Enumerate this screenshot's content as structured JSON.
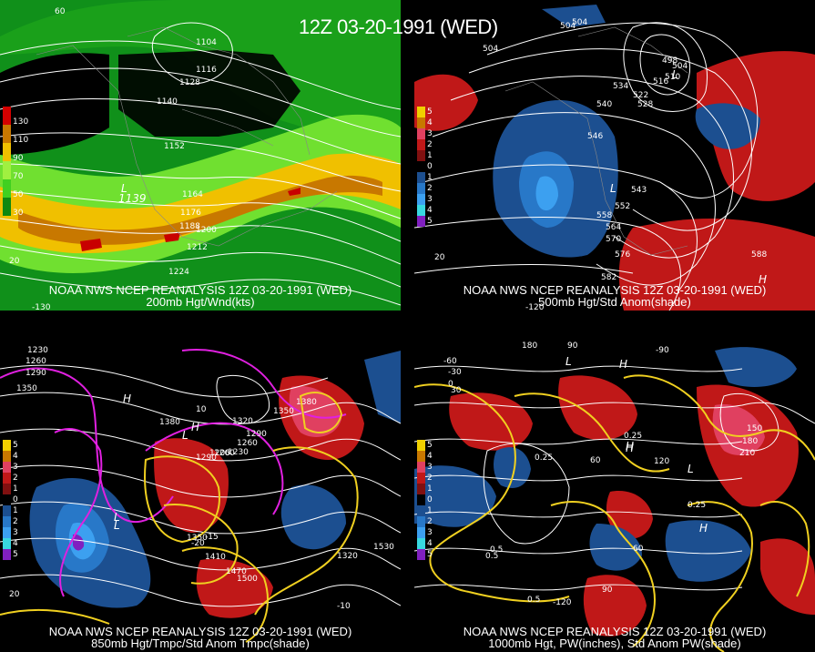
{
  "header": {
    "title": "12Z 03-20-1991 (WED)"
  },
  "panels": [
    {
      "id": "p200",
      "caption1": "NOAA NWS NCEP REANALYSIS 12Z 03-20-1991 (WED)",
      "caption2": "200mb Hgt/Wnd(kts)",
      "legend_labels": [
        "130",
        "110",
        "90",
        "70",
        "50",
        "30"
      ],
      "legend_colors": [
        "#d40000",
        "#c87800",
        "#f0c000",
        "#a0f040",
        "#40d020",
        "#108810"
      ],
      "contour_labels": [
        "1104",
        "1116",
        "1128",
        "1140",
        "1152",
        "1164",
        "1176",
        "1188",
        "1200",
        "1212",
        "1224",
        "60",
        "20",
        "-130"
      ],
      "center_marks": [
        "L",
        "1139"
      ]
    },
    {
      "id": "p500",
      "caption1": "NOAA NWS NCEP REANALYSIS 12Z 03-20-1991 (WED)",
      "caption2": "500mb Hgt/Std Anom(shade)",
      "legend_labels": [
        "5",
        "4",
        "3",
        "2",
        "1",
        "0",
        "1",
        "2",
        "3",
        "4",
        "5"
      ],
      "legend_colors": [
        "#f0d000",
        "#c87800",
        "#e04060",
        "#c01818",
        "#801010",
        "#000000",
        "#1c4f90",
        "#2878c8",
        "#3ca0f0",
        "#38d8e0",
        "#8020c0"
      ],
      "contour_labels": [
        "504",
        "504",
        "504",
        "510",
        "516",
        "522",
        "528",
        "534",
        "540",
        "546",
        "552",
        "558",
        "564",
        "570",
        "576",
        "582",
        "588",
        "498",
        "504",
        "543",
        "20",
        "-120"
      ],
      "center_marks": [
        "L",
        "H",
        "L"
      ]
    },
    {
      "id": "p850",
      "caption1": "NOAA NWS NCEP REANALYSIS 12Z 03-20-1991 (WED)",
      "caption2": "850mb Hgt/Tmpc/Std Anom Tmpc(shade)",
      "legend_labels": [
        "5",
        "4",
        "3",
        "2",
        "1",
        "0",
        "1",
        "2",
        "3",
        "4",
        "5"
      ],
      "legend_colors": [
        "#f0d000",
        "#c87800",
        "#e04060",
        "#c01818",
        "#801010",
        "#000000",
        "#1c4f90",
        "#2878c8",
        "#3ca0f0",
        "#38d8e0",
        "#8020c0"
      ],
      "contour_labels": [
        "1230",
        "1260",
        "1290",
        "1350",
        "1380",
        "1380",
        "1350",
        "1320",
        "1290",
        "1260",
        "1230",
        "1200",
        "1260",
        "1290",
        "1320",
        "1350",
        "1410",
        "1470",
        "1500",
        "1530",
        "10",
        "-20",
        "-15",
        "-10",
        "20"
      ],
      "center_marks": [
        "H",
        "L",
        "H",
        "L",
        "L"
      ]
    },
    {
      "id": "p1000",
      "caption1": "NOAA NWS NCEP REANALYSIS 12Z 03-20-1991 (WED)",
      "caption2": "1000mb Hgt, PW(inches), Std Anom PW(shade)",
      "legend_labels": [
        "5",
        "4",
        "3",
        "2",
        "1",
        "0",
        "1",
        "2",
        "3",
        "4",
        "5"
      ],
      "legend_colors": [
        "#f0d000",
        "#c87800",
        "#e04060",
        "#c01818",
        "#801010",
        "#000000",
        "#1c4f90",
        "#2878c8",
        "#3ca0f0",
        "#38d8e0",
        "#8020c0"
      ],
      "contour_labels": [
        "180",
        "90",
        "-60",
        "-30",
        "0",
        "30",
        "60",
        "120",
        "150",
        "180",
        "210",
        "0.25",
        "0.25",
        "0.25",
        "0.5",
        "0.5",
        "0.5",
        "-120",
        "-90",
        "60",
        "90"
      ],
      "center_marks": [
        "L",
        "H",
        "H",
        "L",
        "H",
        "H"
      ]
    }
  ]
}
